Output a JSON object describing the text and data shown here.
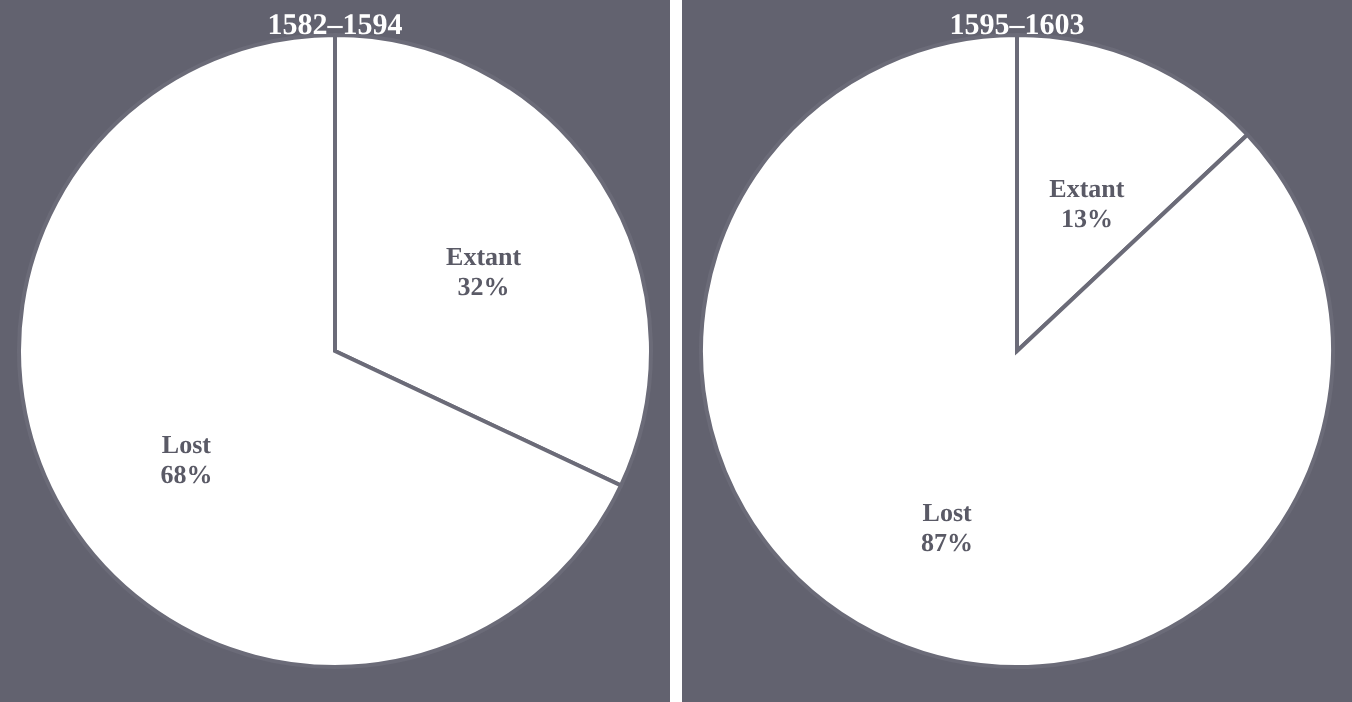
{
  "chart_data": [
    {
      "type": "pie",
      "title": "1582–1594",
      "categories": [
        "Extant",
        "Lost"
      ],
      "values": [
        32,
        68
      ],
      "colors": [
        "#ffffff",
        "#ffffff"
      ],
      "value_labels": [
        "32%",
        "68%"
      ]
    },
    {
      "type": "pie",
      "title": "1595–1603",
      "categories": [
        "Extant",
        "Lost"
      ],
      "values": [
        13,
        87
      ],
      "colors": [
        "#ffffff",
        "#ffffff"
      ],
      "value_labels": [
        "13%",
        "87%"
      ]
    }
  ]
}
